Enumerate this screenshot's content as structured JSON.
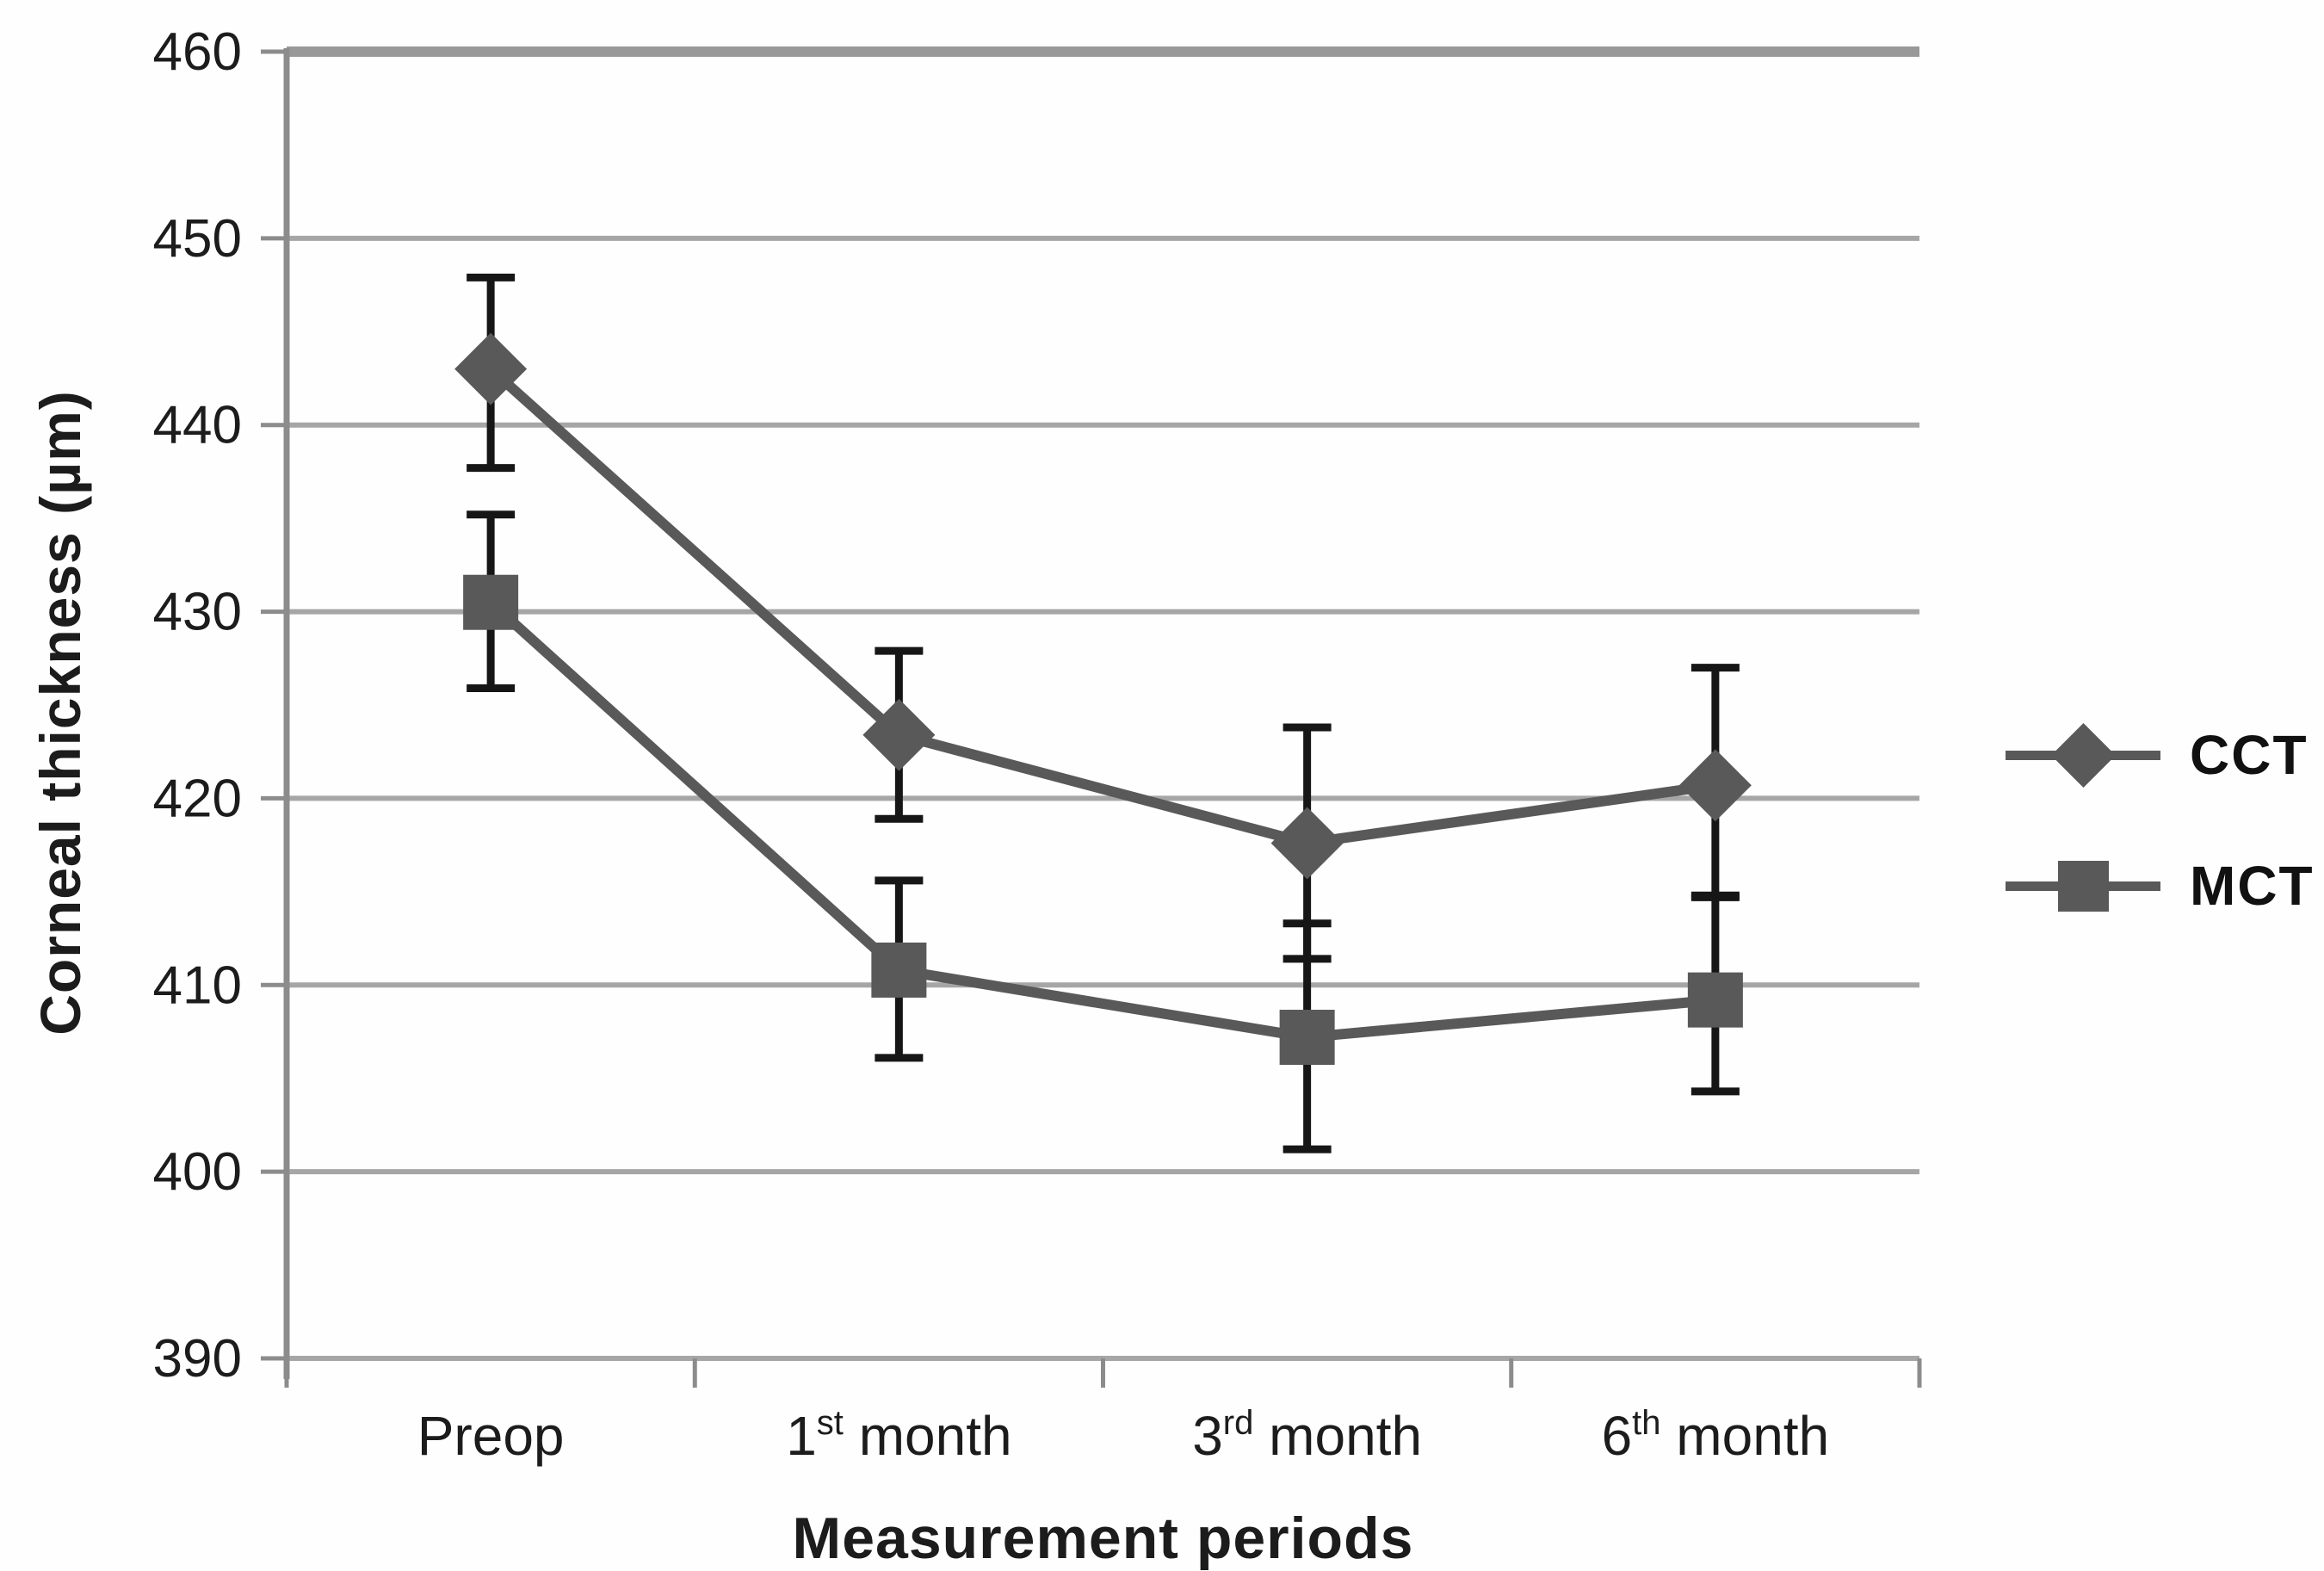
{
  "chart_data": {
    "type": "line",
    "title": "",
    "ylabel": "Corneal thickness (µm)",
    "xlabel": "Measurement periods",
    "ylim": [
      390,
      460
    ],
    "yticks": [
      460,
      450,
      440,
      430,
      420,
      410,
      400,
      390
    ],
    "grid": "horizontal-gridlines-on",
    "legend_position": "right",
    "categories": [
      "Preop",
      "1st month",
      "3rd month",
      "6th month"
    ],
    "categories_fmt": [
      {
        "pre": "Preop",
        "sup": "",
        "post": ""
      },
      {
        "pre": "1",
        "sup": "st",
        "post": " month"
      },
      {
        "pre": "3",
        "sup": "rd",
        "post": " month"
      },
      {
        "pre": "6",
        "sup": "th",
        "post": " month"
      }
    ],
    "series": [
      {
        "name": "CCT",
        "marker": "diamond",
        "values": [
          443.0,
          423.4,
          417.6,
          420.7
        ],
        "error_high": [
          447.9,
          427.9,
          423.8,
          427.0
        ],
        "error_low": [
          437.7,
          418.9,
          411.4,
          414.8
        ]
      },
      {
        "name": "MCT",
        "marker": "square",
        "values": [
          430.5,
          410.8,
          407.2,
          409.2
        ],
        "error_high": [
          435.2,
          415.6,
          413.3,
          414.7
        ],
        "error_low": [
          425.9,
          406.1,
          401.2,
          404.3
        ]
      }
    ],
    "colors": {
      "series": "#595959",
      "error_bar": "#161616",
      "gridline": "#a6a6a6",
      "top_gridline": "#999999",
      "axis": "#8c8c8c",
      "text": "#1c1c1c"
    }
  }
}
